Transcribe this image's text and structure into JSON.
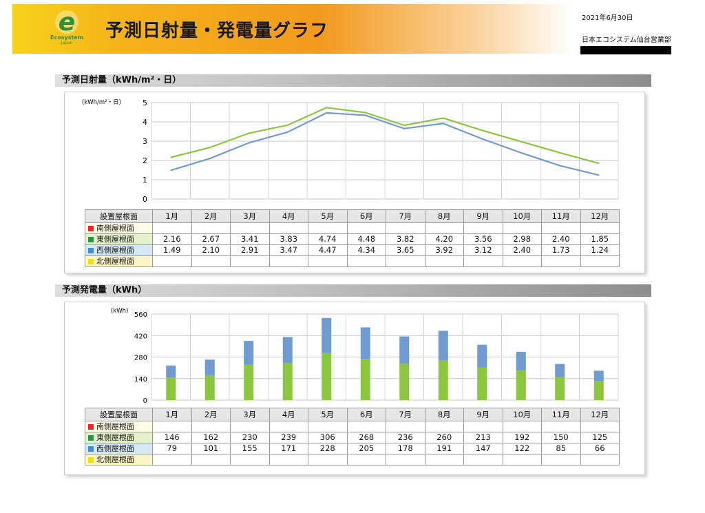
{
  "header": {
    "title": "予測日射量・発電量グラフ",
    "date": "2021年6月30日",
    "office": "日本エコシステム仙台営業部",
    "logo": {
      "mark": "e",
      "name": "Ecosystem",
      "sub": "Japan"
    }
  },
  "colors": {
    "green": "#8cc63f",
    "blue": "#6f9bd1",
    "red": "#e8262c",
    "dark_green": "#1e9a45",
    "light_blue": "#3f8fd8",
    "yellow": "#f3e200"
  },
  "months": [
    "1月",
    "2月",
    "3月",
    "4月",
    "5月",
    "6月",
    "7月",
    "8月",
    "9月",
    "10月",
    "11月",
    "12月"
  ],
  "row_labels": [
    "南側屋根面",
    "東側屋根面",
    "西側屋根面",
    "北側屋根面"
  ],
  "table_header": "設置屋根面",
  "sections": {
    "irradiance_title": "予測日射量（kWh/m²・日）",
    "generation_title": "予測発電量（kWh）"
  },
  "chart_data": [
    {
      "type": "line",
      "ylabel": "(kWh/m²・日)",
      "ylim": [
        0,
        5
      ],
      "yticks": [
        0,
        1,
        2,
        3,
        4,
        5
      ],
      "grid": true,
      "categories": [
        "1月",
        "2月",
        "3月",
        "4月",
        "5月",
        "6月",
        "7月",
        "8月",
        "9月",
        "10月",
        "11月",
        "12月"
      ],
      "series": [
        {
          "name": "南側屋根面",
          "values": [
            null,
            null,
            null,
            null,
            null,
            null,
            null,
            null,
            null,
            null,
            null,
            null
          ]
        },
        {
          "name": "東側屋根面",
          "values": [
            2.16,
            2.67,
            3.41,
            3.83,
            4.74,
            4.48,
            3.82,
            4.2,
            3.56,
            2.98,
            2.4,
            1.85
          ]
        },
        {
          "name": "西側屋根面",
          "values": [
            1.49,
            2.1,
            2.91,
            3.47,
            4.47,
            4.34,
            3.65,
            3.92,
            3.12,
            2.4,
            1.73,
            1.24
          ]
        },
        {
          "name": "北側屋根面",
          "values": [
            null,
            null,
            null,
            null,
            null,
            null,
            null,
            null,
            null,
            null,
            null,
            null
          ]
        }
      ],
      "table": [
        [
          "",
          "",
          "",
          "",
          "",
          "",
          "",
          "",
          "",
          "",
          "",
          ""
        ],
        [
          "2.16",
          "2.67",
          "3.41",
          "3.83",
          "4.74",
          "4.48",
          "3.82",
          "4.20",
          "3.56",
          "2.98",
          "2.40",
          "1.85"
        ],
        [
          "1.49",
          "2.10",
          "2.91",
          "3.47",
          "4.47",
          "4.34",
          "3.65",
          "3.92",
          "3.12",
          "2.40",
          "1.73",
          "1.24"
        ],
        [
          "",
          "",
          "",
          "",
          "",
          "",
          "",
          "",
          "",
          "",
          "",
          ""
        ]
      ]
    },
    {
      "type": "bar",
      "stacked": true,
      "ylabel": "(kWh)",
      "ylim": [
        0,
        560
      ],
      "yticks": [
        0,
        140,
        280,
        420,
        560
      ],
      "grid": true,
      "categories": [
        "1月",
        "2月",
        "3月",
        "4月",
        "5月",
        "6月",
        "7月",
        "8月",
        "9月",
        "10月",
        "11月",
        "12月"
      ],
      "series": [
        {
          "name": "東側屋根面",
          "values": [
            146,
            162,
            230,
            239,
            306,
            268,
            236,
            260,
            213,
            192,
            150,
            125
          ]
        },
        {
          "name": "西側屋根面",
          "values": [
            79,
            101,
            155,
            171,
            228,
            205,
            178,
            191,
            147,
            122,
            85,
            66
          ]
        }
      ],
      "table": [
        [
          "",
          "",
          "",
          "",
          "",
          "",
          "",
          "",
          "",
          "",
          "",
          ""
        ],
        [
          "146",
          "162",
          "230",
          "239",
          "306",
          "268",
          "236",
          "260",
          "213",
          "192",
          "150",
          "125"
        ],
        [
          "79",
          "101",
          "155",
          "171",
          "228",
          "205",
          "178",
          "191",
          "147",
          "122",
          "85",
          "66"
        ],
        [
          "",
          "",
          "",
          "",
          "",
          "",
          "",
          "",
          "",
          "",
          "",
          ""
        ]
      ]
    }
  ]
}
